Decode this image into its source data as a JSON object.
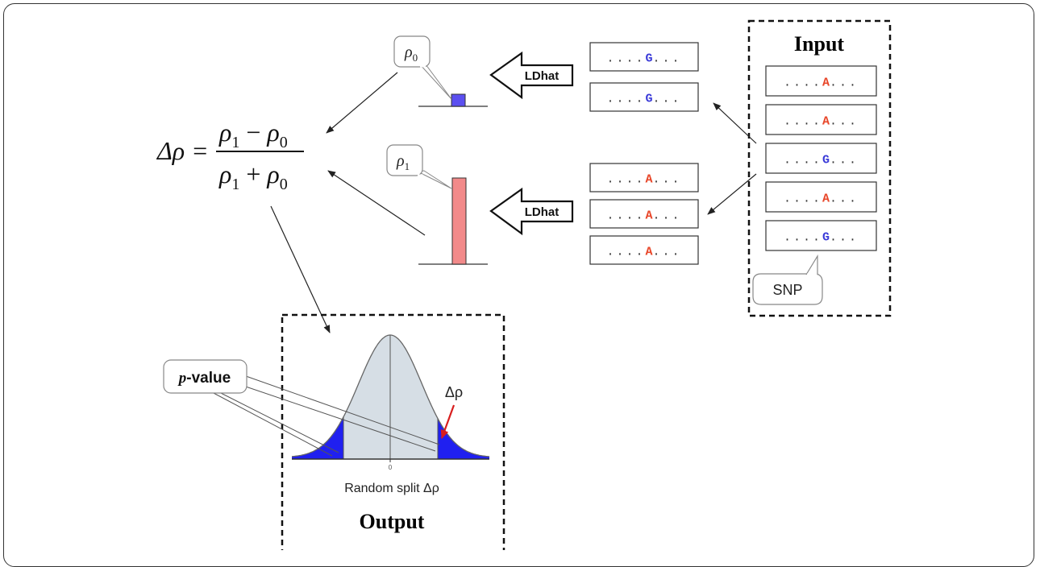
{
  "input": {
    "title": "Input",
    "sequences": [
      {
        "prefix": "....",
        "allele": "A",
        "suffix": "..."
      },
      {
        "prefix": "....",
        "allele": "A",
        "suffix": "..."
      },
      {
        "prefix": "....",
        "allele": "G",
        "suffix": "..."
      },
      {
        "prefix": "....",
        "allele": "A",
        "suffix": "..."
      },
      {
        "prefix": "....",
        "allele": "G",
        "suffix": "..."
      }
    ],
    "callout": "SNP"
  },
  "group_g": {
    "sequences": [
      {
        "prefix": "....",
        "allele": "G",
        "suffix": "..."
      },
      {
        "prefix": "....",
        "allele": "G",
        "suffix": "..."
      }
    ],
    "tool_label": "LDhat",
    "rho_label": {
      "symbol": "ρ",
      "sub": "0"
    }
  },
  "group_a": {
    "sequences": [
      {
        "prefix": "....",
        "allele": "A",
        "suffix": "..."
      },
      {
        "prefix": "....",
        "allele": "A",
        "suffix": "..."
      },
      {
        "prefix": "....",
        "allele": "A",
        "suffix": "..."
      }
    ],
    "tool_label": "LDhat",
    "rho_label": {
      "symbol": "ρ",
      "sub": "1"
    }
  },
  "formula": {
    "lhs": "Δρ =",
    "numerator": {
      "a": "ρ",
      "a_sub": "1",
      "op": "−",
      "b": "ρ",
      "b_sub": "0"
    },
    "denominator": {
      "a": "ρ",
      "a_sub": "1",
      "op": "+",
      "b": "ρ",
      "b_sub": "0"
    }
  },
  "output": {
    "title": "Output",
    "xlabel": "Random split Δρ",
    "tick_label": "0",
    "arrow_label": "Δρ",
    "pvalue_callout": {
      "italic": "p",
      "rest": "-value"
    }
  },
  "colors": {
    "allele_a": "#e8472a",
    "allele_g": "#3a3ad8",
    "rho0_bar": "#5b4ff0",
    "rho1_bar": "#f28a8a",
    "curve_fill": "#d6dee5",
    "tail_fill": "#2020f0",
    "red_arrow": "#d81e1e"
  }
}
